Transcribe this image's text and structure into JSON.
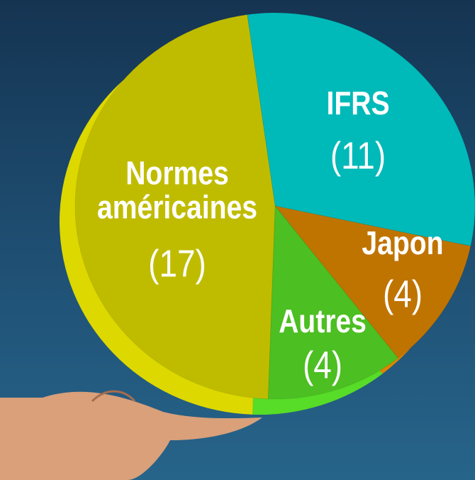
{
  "chart_data": {
    "type": "pie",
    "categories": [
      "IFRS",
      "Japon",
      "Autres",
      "Normes américaines"
    ],
    "values": [
      11,
      4,
      4,
      17
    ],
    "value_labels": [
      "(11)",
      "(4)",
      "(4)",
      "(17)"
    ],
    "colors": [
      "#00b9b9",
      "#c07400",
      "#4cbf22",
      "#bfbc00"
    ]
  }
}
